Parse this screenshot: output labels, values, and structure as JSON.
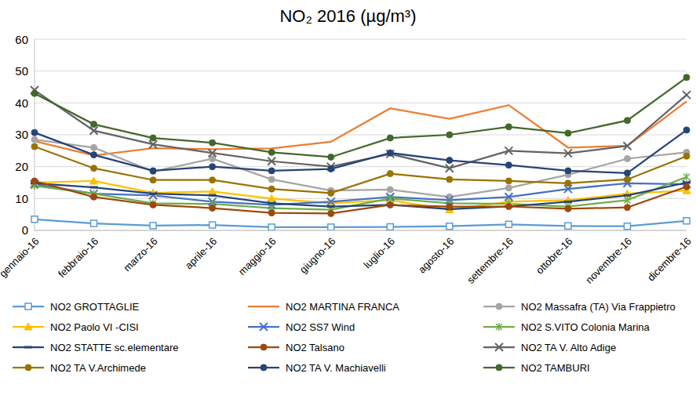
{
  "chart_data": {
    "type": "line",
    "title": "NO₂ 2016 (µg/m³)",
    "categories": [
      "gennaio-16",
      "febbraio-16",
      "marzo-16",
      "aprile-16",
      "maggio-16",
      "giugno-16",
      "luglio-16",
      "agosto-16",
      "settembre-16",
      "ottobre-16",
      "novembre-16",
      "dicembre-16"
    ],
    "ylim": [
      0,
      60
    ],
    "yticks": [
      0,
      10,
      20,
      30,
      40,
      50,
      60
    ],
    "grid": true,
    "legend": "bottom",
    "series": [
      {
        "name": "NO2 GROTTAGLIE",
        "color": "#5B9BD5",
        "marker": "square",
        "values": [
          3.5,
          2.2,
          1.5,
          1.7,
          1.0,
          1.0,
          1.1,
          1.3,
          1.9,
          1.4,
          1.3,
          3.0
        ]
      },
      {
        "name": "NO2 MARTINA FRANCA",
        "color": "#ED7D31",
        "marker": "none",
        "values": [
          28,
          23.5,
          25.8,
          25.5,
          25.7,
          27.8,
          38.3,
          35,
          39.3,
          26,
          26.5,
          40.5
        ]
      },
      {
        "name": "NO2 Massafra (TA) Via Frappietro",
        "color": "#A5A5A5",
        "marker": "circle",
        "values": [
          28.5,
          26,
          18.5,
          22.5,
          16,
          12.5,
          12.8,
          10.5,
          13.3,
          17.5,
          22.5,
          24.5
        ]
      },
      {
        "name": "NO2 Paolo VI -CISI",
        "color": "#FFC000",
        "marker": "triangle",
        "values": [
          15,
          15.5,
          11.8,
          12.2,
          10,
          8.5,
          9.5,
          6.5,
          9,
          9.5,
          11.5,
          12.5
        ]
      },
      {
        "name": "NO2 SS7 Wind",
        "color": "#4472C4",
        "marker": "x",
        "values": [
          14.5,
          11.5,
          11,
          9,
          8,
          9,
          10.5,
          9.5,
          10.5,
          13,
          14.8,
          14.5
        ]
      },
      {
        "name": "NO2 S.VITO Colonia Marina",
        "color": "#70AD47",
        "marker": "star",
        "values": [
          14,
          11.5,
          8.5,
          8.3,
          7,
          6.5,
          10,
          8.5,
          8.3,
          7.5,
          9.5,
          16.8
        ]
      },
      {
        "name": "NO2 STATTE sc.elementare",
        "color": "#264478",
        "marker": "dash",
        "values": [
          14.8,
          13.5,
          11.5,
          11,
          8.5,
          7.5,
          8,
          6.7,
          7.5,
          9,
          11,
          15
        ]
      },
      {
        "name": "NO2 Talsano",
        "color": "#9E480E",
        "marker": "circle",
        "values": [
          15.5,
          10.5,
          8,
          7,
          5.5,
          5.3,
          8,
          7.5,
          7.5,
          6.8,
          7.2,
          13.7
        ]
      },
      {
        "name": "NO2 TA V. Alto Adige",
        "color": "#636363",
        "marker": "x",
        "values": [
          44,
          31.3,
          27,
          24.3,
          21.7,
          20,
          24,
          19.5,
          25,
          24.2,
          26.5,
          42.5
        ]
      },
      {
        "name": "NO2 TA V.Archimede",
        "color": "#997300",
        "marker": "circle",
        "values": [
          26.3,
          19.5,
          15.8,
          15.8,
          13,
          11.7,
          17.8,
          16,
          15.5,
          14.8,
          16,
          23.3
        ]
      },
      {
        "name": "NO2 TA V. Machiavelli",
        "color": "#264478",
        "marker": "circle",
        "values": [
          30.7,
          23.7,
          18.7,
          20,
          18.7,
          19.3,
          24.3,
          22,
          20.5,
          18.7,
          18,
          31.5
        ]
      },
      {
        "name": "NO2 TAMBURI",
        "color": "#43682B",
        "marker": "circle",
        "values": [
          43,
          33.3,
          29,
          27.5,
          24.5,
          23,
          29,
          30,
          32.5,
          30.5,
          34.5,
          48
        ]
      }
    ]
  }
}
